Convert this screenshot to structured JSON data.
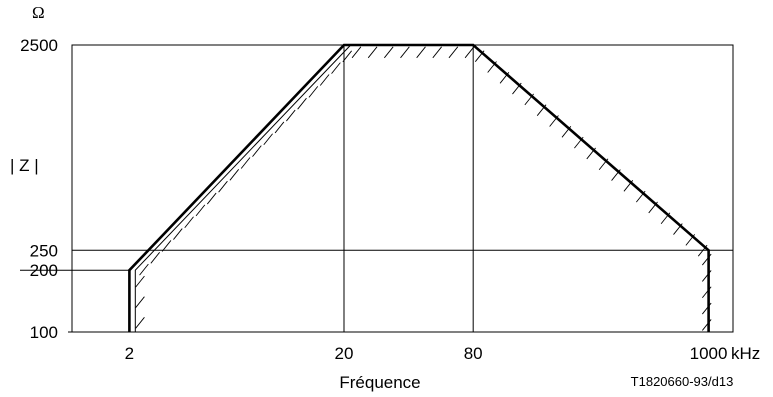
{
  "chart_data": {
    "type": "line",
    "title": "",
    "xlabel": "Fréquence",
    "x_unit": "kHz",
    "ylabel": "| Z |",
    "y_unit": "Ω",
    "x_scale": "log",
    "y_scale": "log",
    "xlim": [
      1.08,
      1300
    ],
    "ylim": [
      100,
      2500
    ],
    "x_ticks": [
      2,
      20,
      80,
      1000
    ],
    "x_tick_labels": [
      "2",
      "20",
      "80",
      "1000"
    ],
    "y_ticks": [
      100,
      200,
      250,
      2500
    ],
    "y_tick_labels": [
      "100",
      "200",
      "250",
      "2500"
    ],
    "grid": true,
    "series": [
      {
        "role": "boundary",
        "points": [
          [
            2,
            100
          ],
          [
            2,
            200
          ],
          [
            20,
            2500
          ],
          [
            80,
            2500
          ],
          [
            1000,
            250
          ],
          [
            1000,
            100
          ]
        ]
      },
      {
        "role": "inner-boundary",
        "points": [
          [
            2.13,
            100
          ],
          [
            2.13,
            200
          ],
          [
            21.5,
            2500
          ]
        ]
      }
    ],
    "hatched_side": "inside",
    "reference": "T1820660-93/d13"
  }
}
